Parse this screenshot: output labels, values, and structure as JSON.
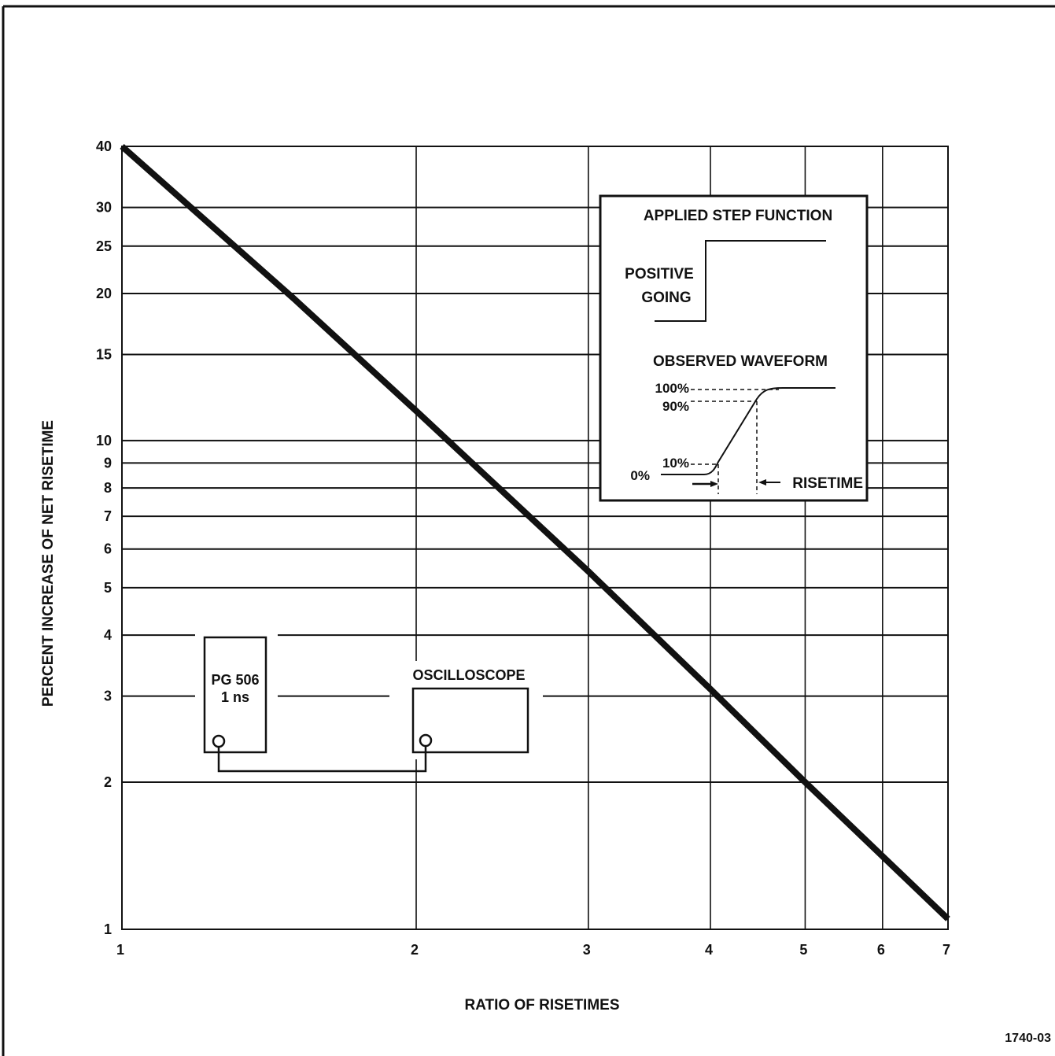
{
  "chart_data": {
    "type": "line",
    "title": "",
    "xlabel": "RATIO OF RISETIMES",
    "ylabel": "PERCENT INCREASE OF NET RISETIME",
    "x_scale": "log",
    "y_scale": "log",
    "xlim": [
      1,
      7
    ],
    "ylim": [
      1,
      40
    ],
    "grid": true,
    "legend": "none",
    "x_ticks": [
      1,
      2,
      3,
      4,
      5,
      6,
      7
    ],
    "x_tick_labels": [
      "1",
      "2",
      "3",
      "4",
      "5",
      "6",
      "7"
    ],
    "y_ticks": [
      1,
      2,
      3,
      4,
      5,
      6,
      7,
      8,
      9,
      10,
      15,
      20,
      25,
      30,
      40
    ],
    "y_tick_labels": [
      "1",
      "2",
      "3",
      "4",
      "5",
      "6",
      "7",
      "8",
      "9",
      "10",
      "15",
      "20",
      "25",
      "30",
      "40"
    ],
    "series": [
      {
        "x": [
          1.0,
          1.5,
          2.0,
          3.0,
          4.0,
          5.0,
          7.0
        ],
        "y": [
          40,
          19.5,
          11.5,
          5.4,
          3.1,
          2.0,
          1.05
        ]
      }
    ]
  },
  "inset_waveform": {
    "title": "APPLIED STEP FUNCTION",
    "step_label_line1": "POSITIVE",
    "step_label_line2": "GOING",
    "observed_title": "OBSERVED WAVEFORM",
    "level_100": "100%",
    "level_90": "90%",
    "level_10": "10%",
    "level_0": "0%",
    "risetime_label": "RISETIME"
  },
  "inset_setup": {
    "generator_line1": "PG 506",
    "generator_line2": "1 ns",
    "scope_label": "OSCILLOSCOPE"
  },
  "figure_id": "1740-03",
  "colors": {
    "ink": "#111111",
    "paper": "#ffffff"
  }
}
